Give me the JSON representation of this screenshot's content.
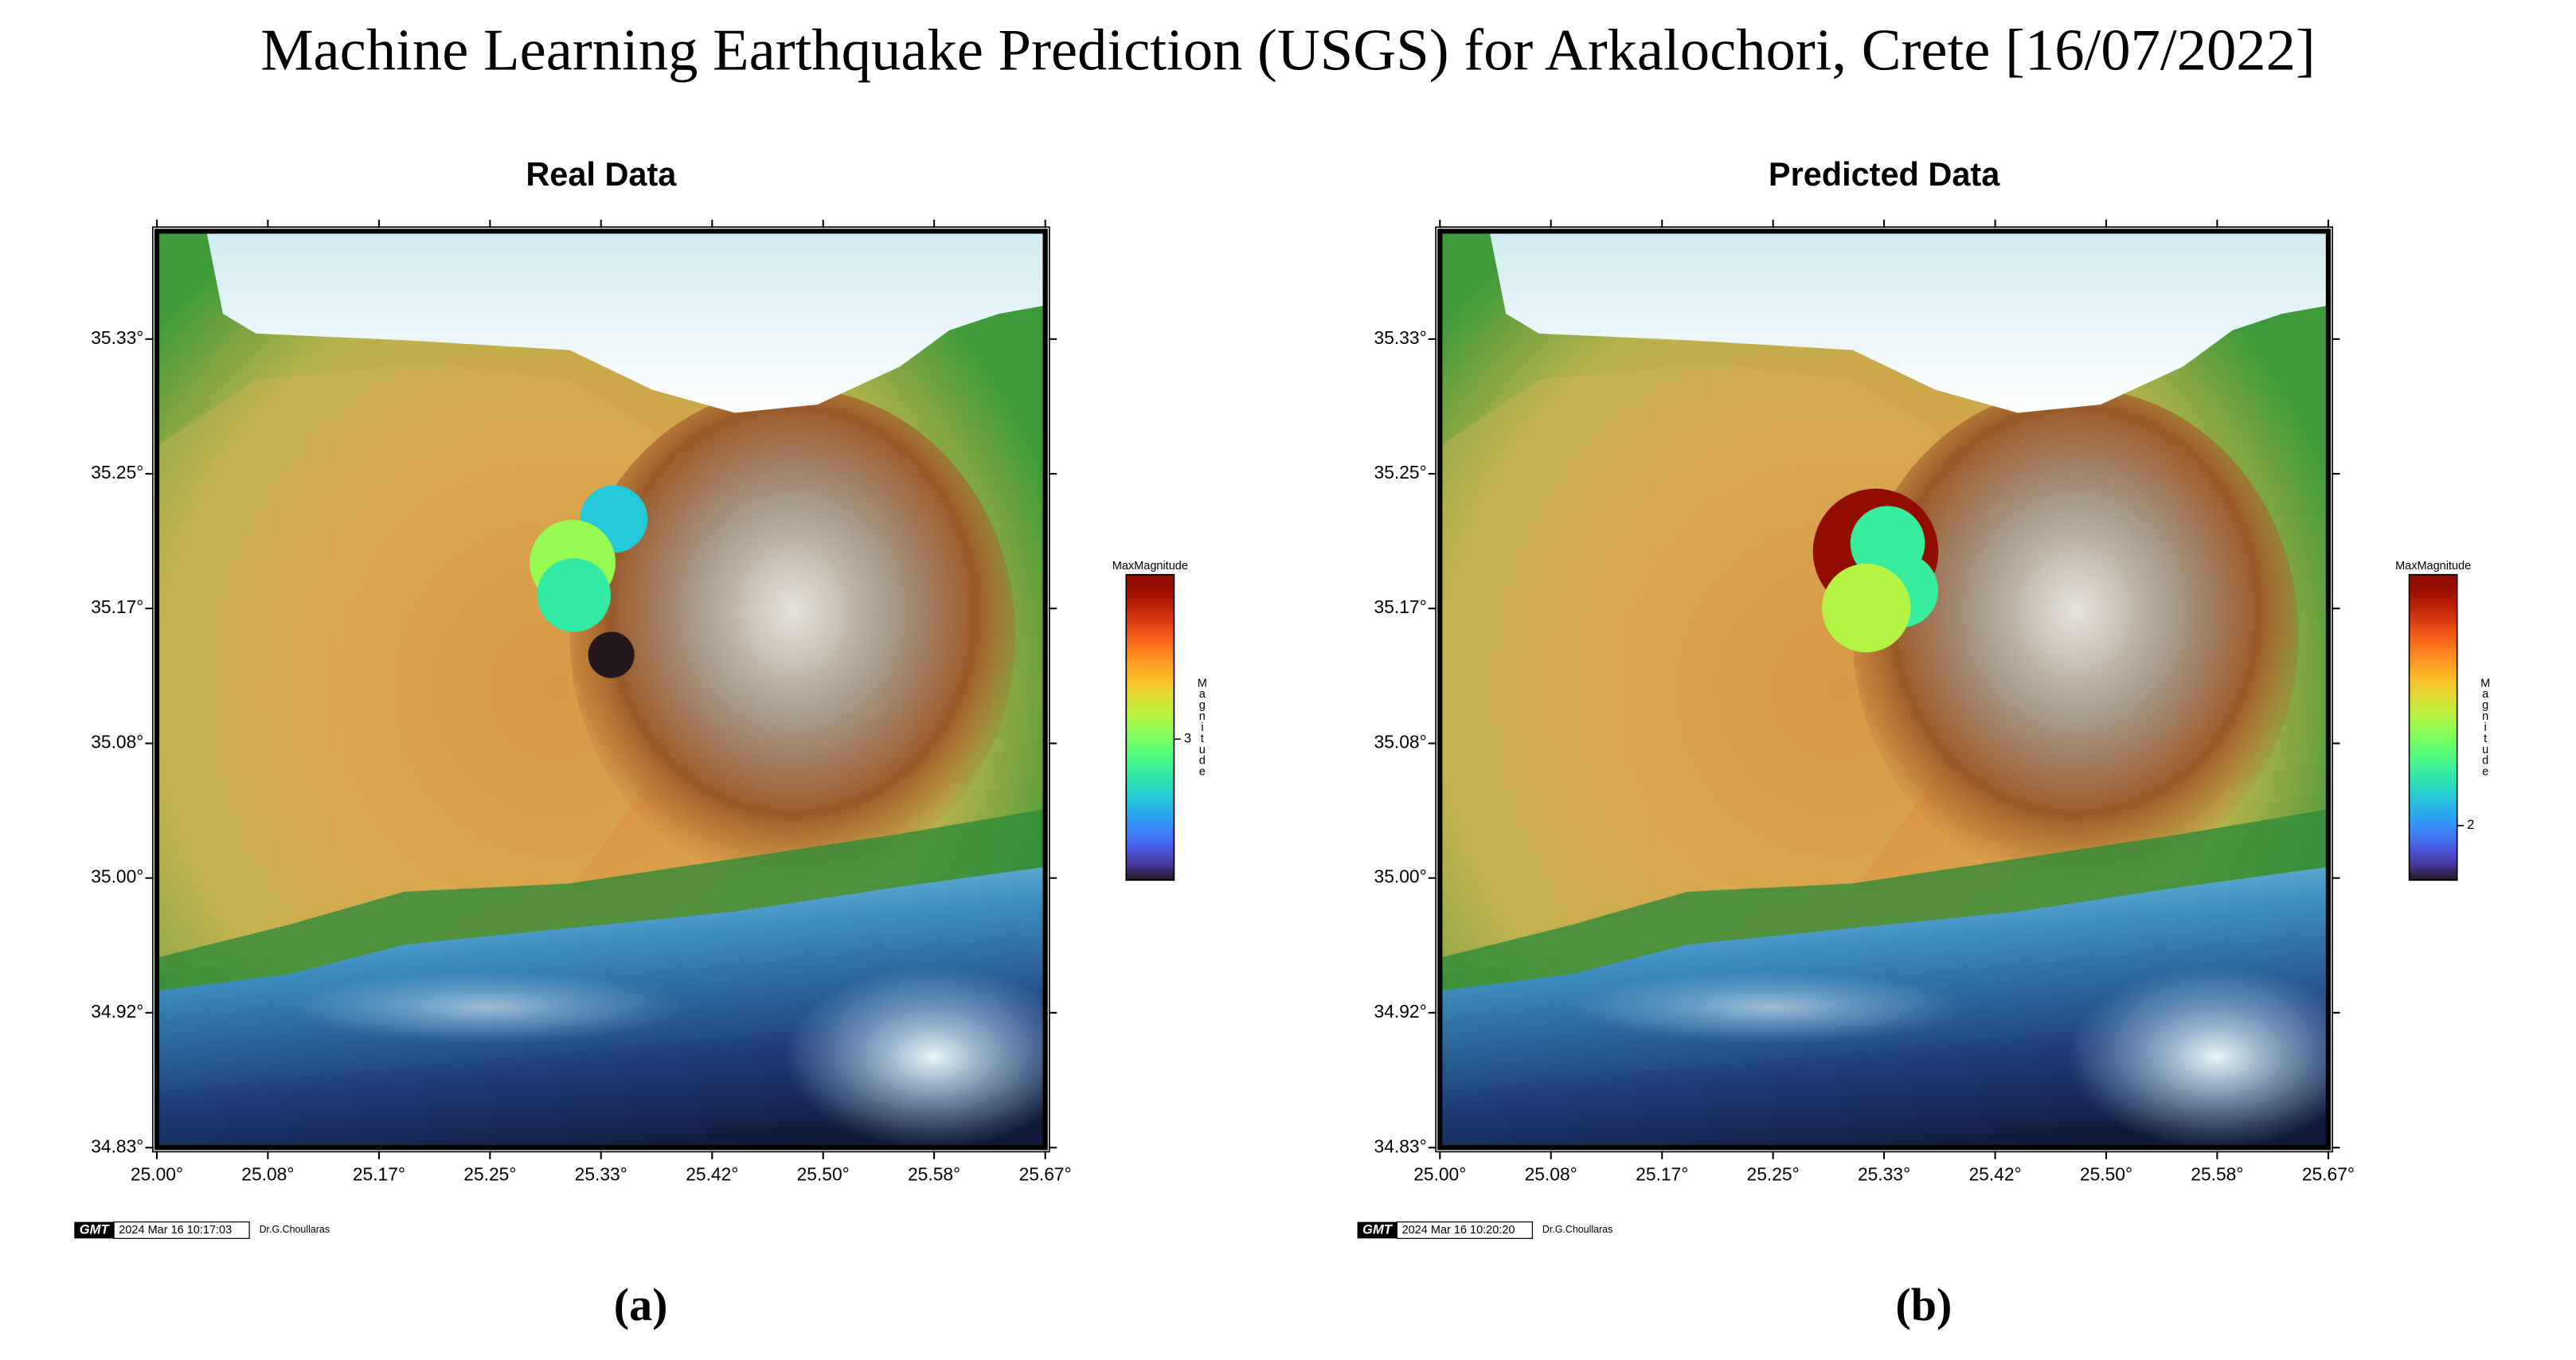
{
  "figure_title": "Machine Learning Earthquake Prediction (USGS) for Arkalochori, Crete [16/07/2022]",
  "chart_data": [
    {
      "type": "scatter",
      "title": "Real Data",
      "x": [
        25.343,
        25.312,
        25.316,
        25.313,
        25.341
      ],
      "y": [
        35.222,
        35.195,
        35.167,
        35.175,
        35.138
      ],
      "values": [
        2.5,
        3.1,
        1.8,
        2.7,
        1.8
      ],
      "xlim": [
        25,
        25.6667
      ],
      "ylim": [
        34.8333,
        35.4
      ],
      "xticks": [
        {
          "value": 25,
          "label": "25.00°"
        },
        {
          "value": 25.0833,
          "label": "25.08°"
        },
        {
          "value": 25.1667,
          "label": "25.17°"
        },
        {
          "value": 25.25,
          "label": "25.25°"
        },
        {
          "value": 25.3333,
          "label": "25.33°"
        },
        {
          "value": 25.4167,
          "label": "25.42°"
        },
        {
          "value": 25.5,
          "label": "25.50°"
        },
        {
          "value": 25.5833,
          "label": "25.58°"
        },
        {
          "value": 25.6667,
          "label": "25.67°"
        }
      ],
      "yticks": [
        {
          "value": 34.8333,
          "label": "34.83°"
        },
        {
          "value": 34.9167,
          "label": "34.92°"
        },
        {
          "value": 35,
          "label": "35.00°"
        },
        {
          "value": 35.0833,
          "label": "35.08°"
        },
        {
          "value": 35.1667,
          "label": "35.17°"
        },
        {
          "value": 35.25,
          "label": "35.25°"
        },
        {
          "value": 35.3333,
          "label": "35.33°"
        }
      ],
      "colormap": "turbo",
      "clim": [
        1.8,
        4.4
      ],
      "cticks": [
        3
      ],
      "colorbar_title": "MaxMagnitude",
      "colorbar_label": "Magnitude",
      "logo": "GMT",
      "timestamp": "2024 Mar 16 10:17:03",
      "credit": "Dr.G.Choullaras",
      "panel_label": "(a)"
    },
    {
      "type": "scatter",
      "title": "Predicted Data",
      "x": [
        25.327,
        25.336,
        25.346,
        25.32
      ],
      "y": [
        35.202,
        35.207,
        35.178,
        35.167
      ],
      "values": [
        2.92,
        2.2,
        2.2,
        2.4
      ],
      "xlim": [
        25,
        25.6667
      ],
      "ylim": [
        34.8333,
        35.4
      ],
      "xticks": [
        {
          "value": 25,
          "label": "25.00°"
        },
        {
          "value": 25.0833,
          "label": "25.08°"
        },
        {
          "value": 25.1667,
          "label": "25.17°"
        },
        {
          "value": 25.25,
          "label": "25.25°"
        },
        {
          "value": 25.3333,
          "label": "25.33°"
        },
        {
          "value": 25.4167,
          "label": "25.42°"
        },
        {
          "value": 25.5,
          "label": "25.50°"
        },
        {
          "value": 25.5833,
          "label": "25.58°"
        },
        {
          "value": 25.6667,
          "label": "25.67°"
        }
      ],
      "yticks": [
        {
          "value": 34.8333,
          "label": "34.83°"
        },
        {
          "value": 34.9167,
          "label": "34.92°"
        },
        {
          "value": 35,
          "label": "35.00°"
        },
        {
          "value": 35.0833,
          "label": "35.08°"
        },
        {
          "value": 35.1667,
          "label": "35.17°"
        },
        {
          "value": 35.25,
          "label": "35.25°"
        },
        {
          "value": 35.3333,
          "label": "35.33°"
        }
      ],
      "colormap": "turbo",
      "clim": [
        1.8,
        2.92
      ],
      "cticks": [
        2
      ],
      "colorbar_title": "MaxMagnitude",
      "colorbar_label": "Magnitude",
      "logo": "GMT",
      "timestamp": "2024 Mar 16 10:20:20",
      "credit": "Dr.G.Choullaras",
      "panel_label": "(b)"
    }
  ]
}
